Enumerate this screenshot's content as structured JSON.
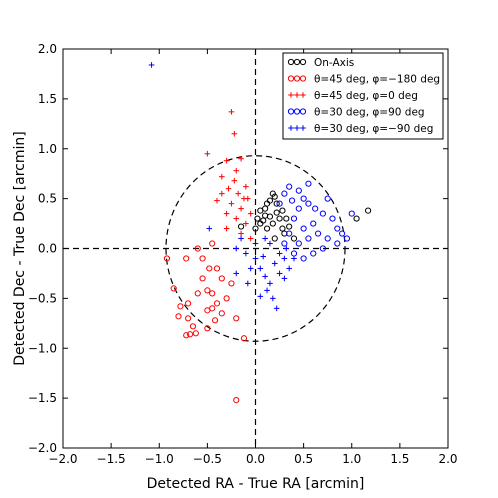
{
  "chart_data": {
    "type": "scatter",
    "xlabel": "Detected RA - True RA [arcmin]",
    "ylabel": "Detected Dec - True Dec [arcmin]",
    "xlim": [
      -2.0,
      2.0
    ],
    "ylim": [
      -2.0,
      2.0
    ],
    "xticks": [
      "−2.0",
      "−1.5",
      "−1.0",
      "−0.5",
      "0.0",
      "0.5",
      "1.0",
      "1.5",
      "2.0"
    ],
    "yticks": [
      "−2.0",
      "−1.5",
      "−1.0",
      "−0.5",
      "0.0",
      "0.5",
      "1.0",
      "1.5",
      "2.0"
    ],
    "reference_circle_radius": 0.93,
    "reference_lines": [
      {
        "axis": "x",
        "value": 0
      },
      {
        "axis": "y",
        "value": 0
      }
    ],
    "legend_position": "top-right",
    "series": [
      {
        "name": "On-Axis",
        "marker": "circle",
        "color": "#000000",
        "points": [
          [
            -0.15,
            0.22
          ],
          [
            0.02,
            0.3
          ],
          [
            0.05,
            0.38
          ],
          [
            0.08,
            0.28
          ],
          [
            0.1,
            0.4
          ],
          [
            0.12,
            0.45
          ],
          [
            0.15,
            0.32
          ],
          [
            0.18,
            0.55
          ],
          [
            0.2,
            0.52
          ],
          [
            0.22,
            0.36
          ],
          [
            0.25,
            0.3
          ],
          [
            0.05,
            0.25
          ],
          [
            0.12,
            0.2
          ],
          [
            0.18,
            0.25
          ],
          [
            0.28,
            0.2
          ],
          [
            0.3,
            0.15
          ],
          [
            0.15,
            0.48
          ],
          [
            0.22,
            0.45
          ],
          [
            0.1,
            0.33
          ],
          [
            0.0,
            0.2
          ],
          [
            0.28,
            0.38
          ],
          [
            0.35,
            0.22
          ],
          [
            0.32,
            0.3
          ],
          [
            1.17,
            0.38
          ],
          [
            1.05,
            0.3
          ],
          [
            0.4,
            0.1
          ],
          [
            0.2,
            0.1
          ]
        ]
      },
      {
        "name": "θ=45 deg, φ=−180 deg",
        "marker": "circle",
        "color": "#ff0000",
        "points": [
          [
            -0.72,
            -0.1
          ],
          [
            -0.92,
            -0.1
          ],
          [
            -0.6,
            0.0
          ],
          [
            -0.48,
            -0.2
          ],
          [
            -0.55,
            -0.3
          ],
          [
            -0.4,
            -0.2
          ],
          [
            -0.35,
            -0.3
          ],
          [
            -0.6,
            -0.45
          ],
          [
            -0.5,
            -0.42
          ],
          [
            -0.45,
            -0.45
          ],
          [
            -0.7,
            -0.55
          ],
          [
            -0.8,
            -0.68
          ],
          [
            -0.7,
            -0.7
          ],
          [
            -0.65,
            -0.78
          ],
          [
            -0.72,
            -0.87
          ],
          [
            -0.68,
            -0.86
          ],
          [
            -0.62,
            -0.85
          ],
          [
            -0.5,
            -0.8
          ],
          [
            -0.45,
            -0.6
          ],
          [
            -0.4,
            -0.55
          ],
          [
            -0.3,
            -0.5
          ],
          [
            -0.35,
            -0.65
          ],
          [
            -0.2,
            -0.7
          ],
          [
            -0.12,
            -0.9
          ],
          [
            -0.2,
            -1.52
          ],
          [
            -0.55,
            -0.1
          ],
          [
            -0.45,
            0.05
          ],
          [
            -0.5,
            -0.62
          ],
          [
            -0.85,
            -0.4
          ],
          [
            -0.78,
            -0.58
          ],
          [
            -0.25,
            -0.35
          ],
          [
            -0.42,
            -0.72
          ]
        ]
      },
      {
        "name": "θ=45 deg, φ=0 deg",
        "marker": "plus",
        "color": "#ff0000",
        "points": [
          [
            -0.25,
            1.37
          ],
          [
            -0.22,
            1.15
          ],
          [
            -0.5,
            0.95
          ],
          [
            -0.3,
            0.88
          ],
          [
            -0.15,
            0.9
          ],
          [
            -0.2,
            0.78
          ],
          [
            -0.35,
            0.72
          ],
          [
            -0.28,
            0.6
          ],
          [
            -0.18,
            0.55
          ],
          [
            -0.12,
            0.5
          ],
          [
            -0.25,
            0.45
          ],
          [
            -0.3,
            0.35
          ],
          [
            -0.2,
            0.3
          ],
          [
            -0.15,
            0.4
          ],
          [
            -0.05,
            0.35
          ],
          [
            -0.1,
            0.25
          ],
          [
            -0.35,
            0.55
          ],
          [
            -0.4,
            0.48
          ],
          [
            -0.22,
            0.68
          ],
          [
            -0.1,
            0.62
          ],
          [
            -0.3,
            0.2
          ],
          [
            -0.15,
            0.15
          ],
          [
            -0.05,
            0.1
          ],
          [
            -0.08,
            0.5
          ]
        ]
      },
      {
        "name": "θ=30 deg, φ=90 deg",
        "marker": "circle",
        "color": "#0000ff",
        "points": [
          [
            0.35,
            0.62
          ],
          [
            0.3,
            0.55
          ],
          [
            0.45,
            0.58
          ],
          [
            0.5,
            0.5
          ],
          [
            0.55,
            0.45
          ],
          [
            0.62,
            0.4
          ],
          [
            0.75,
            0.5
          ],
          [
            0.7,
            0.35
          ],
          [
            0.8,
            0.3
          ],
          [
            0.85,
            0.2
          ],
          [
            0.9,
            0.15
          ],
          [
            0.95,
            0.1
          ],
          [
            0.6,
            0.25
          ],
          [
            0.5,
            0.2
          ],
          [
            0.4,
            0.3
          ],
          [
            0.35,
            0.15
          ],
          [
            0.3,
            0.05
          ],
          [
            0.45,
            0.05
          ],
          [
            0.55,
            0.1
          ],
          [
            0.65,
            0.15
          ],
          [
            0.75,
            0.1
          ],
          [
            0.7,
            0.0
          ],
          [
            0.6,
            -0.05
          ],
          [
            0.5,
            -0.1
          ],
          [
            1.0,
            0.35
          ],
          [
            0.45,
            0.4
          ],
          [
            0.25,
            0.45
          ],
          [
            0.38,
            0.48
          ],
          [
            0.55,
            0.65
          ],
          [
            0.85,
            0.05
          ],
          [
            0.4,
            -0.05
          ]
        ]
      },
      {
        "name": "θ=30 deg, φ=−90 deg",
        "marker": "plus",
        "color": "#0000ff",
        "points": [
          [
            -1.08,
            1.84
          ],
          [
            -0.2,
            0.0
          ],
          [
            -0.1,
            -0.05
          ],
          [
            0.0,
            -0.1
          ],
          [
            0.05,
            -0.2
          ],
          [
            0.1,
            -0.28
          ],
          [
            0.15,
            -0.35
          ],
          [
            0.2,
            -0.15
          ],
          [
            0.25,
            -0.25
          ],
          [
            0.3,
            -0.3
          ],
          [
            0.35,
            -0.2
          ],
          [
            0.12,
            -0.42
          ],
          [
            0.05,
            -0.48
          ],
          [
            0.18,
            -0.5
          ],
          [
            -0.05,
            -0.2
          ],
          [
            0.08,
            -0.08
          ],
          [
            -0.15,
            0.1
          ],
          [
            0.25,
            -0.05
          ],
          [
            0.15,
            0.05
          ],
          [
            0.3,
            -0.1
          ],
          [
            -0.08,
            -0.35
          ],
          [
            0.22,
            -0.6
          ],
          [
            0.4,
            -0.1
          ],
          [
            -0.2,
            -0.25
          ],
          [
            0.1,
            0.1
          ],
          [
            -0.48,
            0.2
          ],
          [
            0.0,
            0.05
          ],
          [
            0.32,
            0.0
          ]
        ]
      }
    ]
  }
}
